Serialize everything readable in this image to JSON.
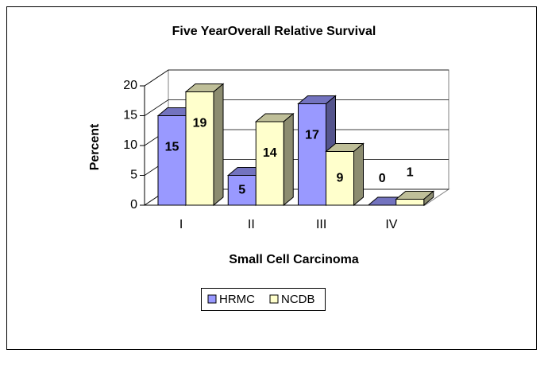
{
  "chart_data": {
    "type": "bar3d",
    "title": "Five YearOverall Relative Survival",
    "categories": [
      "I",
      "II",
      "III",
      "IV"
    ],
    "series": [
      {
        "name": "HRMC",
        "color": "#9999ff",
        "values": [
          15,
          5,
          17,
          0
        ]
      },
      {
        "name": "NCDB",
        "color": "#ffffcc",
        "values": [
          19,
          14,
          9,
          1
        ]
      }
    ],
    "ylim": [
      0,
      20
    ],
    "yticks": [
      0,
      5,
      10,
      15,
      20
    ],
    "grid": true,
    "y_label": "Percent",
    "x_label": "Small Cell Carcinoma",
    "legend": "bottom"
  }
}
